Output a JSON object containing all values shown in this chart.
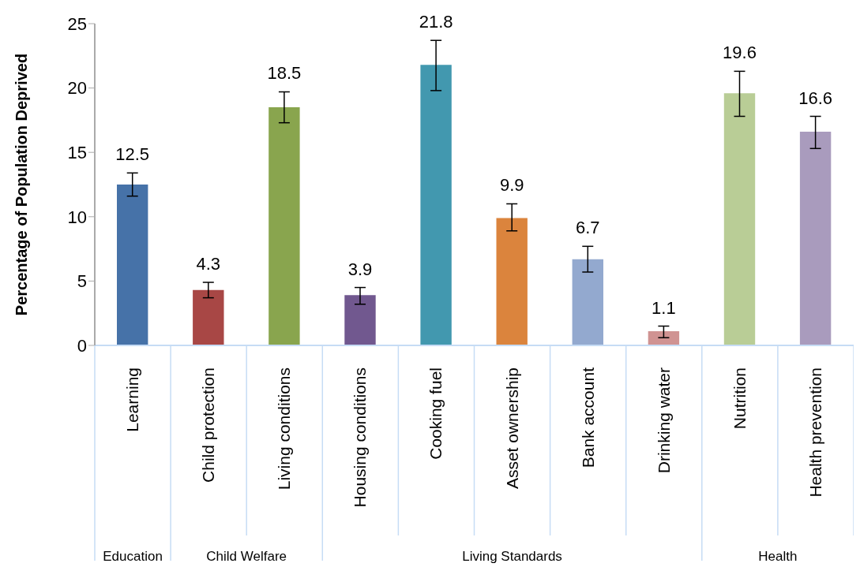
{
  "chart_data": {
    "type": "bar",
    "ylabel": "Percentage of Population Deprived",
    "categories": [
      "Learning",
      "Child protection",
      "Living conditions",
      "Housing conditions",
      "Cooking fuel",
      "Asset ownership",
      "Bank account",
      "Drinking water",
      "Nutrition",
      "Health prevention"
    ],
    "values": [
      12.5,
      4.3,
      18.5,
      3.9,
      21.8,
      9.9,
      6.7,
      1.1,
      19.6,
      16.6
    ],
    "colors": [
      "#4672a8",
      "#a84745",
      "#89a54e",
      "#71588f",
      "#4298af",
      "#db843d",
      "#93a9cf",
      "#d09392",
      "#b9cd96",
      "#a99bbd"
    ],
    "errors": [
      [
        11.6,
        13.4
      ],
      [
        3.7,
        4.9
      ],
      [
        17.3,
        19.7
      ],
      [
        3.2,
        4.5
      ],
      [
        19.8,
        23.7
      ],
      [
        8.9,
        11.0
      ],
      [
        5.7,
        7.7
      ],
      [
        0.6,
        1.5
      ],
      [
        17.8,
        21.3
      ],
      [
        15.3,
        17.8
      ]
    ],
    "data_labels": true,
    "ylim": [
      0,
      25
    ],
    "yticks": [
      0,
      5,
      10,
      15,
      20,
      25
    ],
    "grid": false,
    "legend": false,
    "annotations": [
      "Education",
      "Child Welfare",
      "Living Standards",
      "Health"
    ]
  }
}
